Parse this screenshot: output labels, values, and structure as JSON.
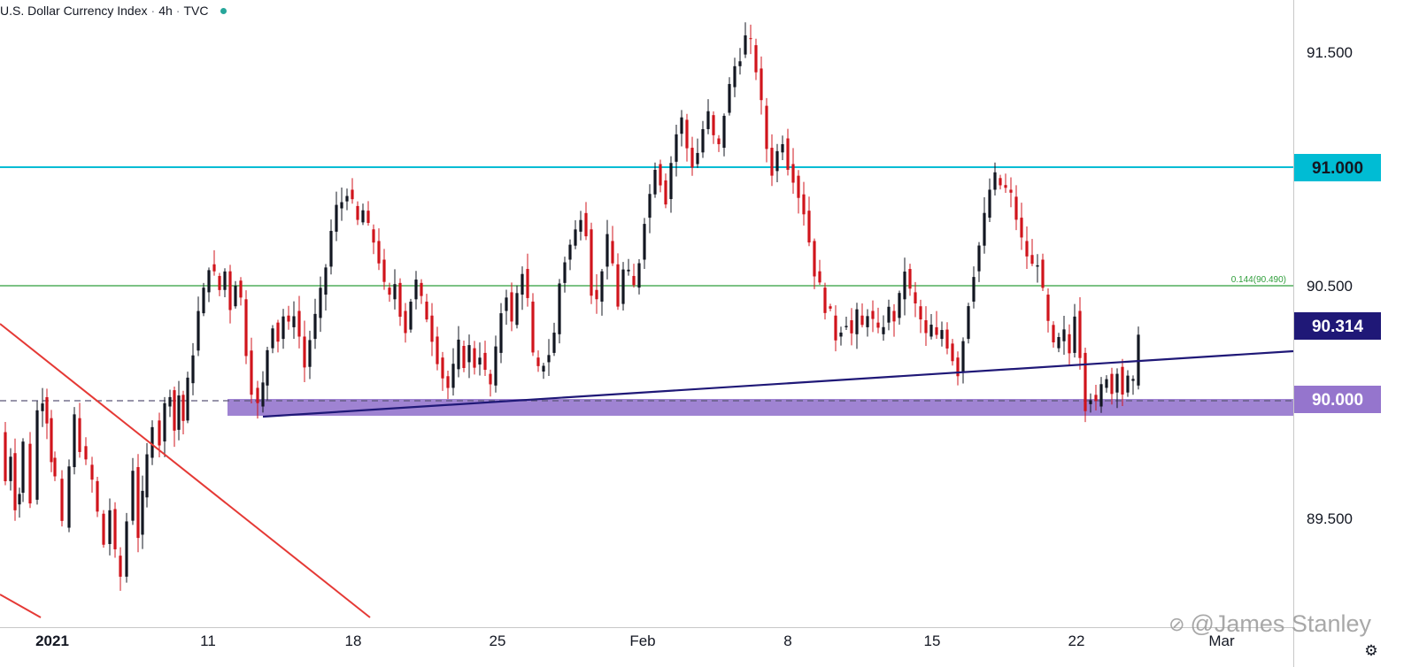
{
  "header": {
    "symbol": "U.S. Dollar Currency Index",
    "interval": "4h",
    "source": "TVC",
    "status_color": "#26a69a"
  },
  "watermark": "@James Stanley",
  "settings_icon": "gear-icon",
  "colors": {
    "up_candle": "#131722",
    "down_candle": "#d0141c",
    "resistance_line": "#00bcd4",
    "fib_line": "#2e9e3a",
    "trend_line": "#1f1877",
    "support_zone": "#9575cd",
    "down_trendline": "#e53935",
    "dashed_line": "#5b5677"
  },
  "chart_data": {
    "type": "candlestick",
    "title": "U.S. Dollar Currency Index",
    "timeframe": "4h",
    "ylim": [
      89.17,
      91.64
    ],
    "x_ticks": [
      "2021",
      "11",
      "18",
      "25",
      "Feb",
      "8",
      "15",
      "22",
      "Mar"
    ],
    "y_ticks": [
      "91.500",
      "91.000",
      "90.500",
      "89.500"
    ],
    "price_labels": [
      {
        "text": "91.000",
        "value": 91.0,
        "color": "#00bcd4"
      },
      {
        "text": "90.314",
        "value": 90.314,
        "color": "#1f1877"
      },
      {
        "text": "90.000",
        "value": 90.0,
        "color": "#9575cd"
      }
    ],
    "levels": [
      {
        "name": "resistance",
        "value": 91.0
      },
      {
        "name": "fib-level",
        "value": 90.49,
        "label": "0.144(90.490)"
      },
      {
        "name": "support-zone",
        "from": 89.935,
        "to": 90.005
      },
      {
        "name": "dashed-level",
        "value": 90.0
      }
    ],
    "trendlines": [
      {
        "name": "rising-support",
        "from": {
          "x": "Jan 13",
          "y": 89.92
        },
        "to": {
          "x": "Feb 26",
          "y": 90.22
        }
      },
      {
        "name": "falling-resistance",
        "from": {
          "x": "Jan 1",
          "y": 90.33
        },
        "to": {
          "x": "Jan 19",
          "y": 89.17
        }
      }
    ],
    "path": [
      [
        0,
        89.87
      ],
      [
        6,
        89.66
      ],
      [
        12,
        89.78
      ],
      [
        17,
        89.56
      ],
      [
        22,
        89.61
      ],
      [
        26,
        89.82
      ],
      [
        34,
        89.58
      ],
      [
        42,
        89.96
      ],
      [
        48,
        90.02
      ],
      [
        53,
        89.93
      ],
      [
        58,
        89.76
      ],
      [
        62,
        89.67
      ],
      [
        70,
        89.46
      ],
      [
        78,
        89.72
      ],
      [
        84,
        89.93
      ],
      [
        90,
        89.81
      ],
      [
        97,
        89.73
      ],
      [
        104,
        89.66
      ],
      [
        110,
        89.52
      ],
      [
        117,
        89.39
      ],
      [
        124,
        89.54
      ],
      [
        130,
        89.34
      ],
      [
        136,
        89.25
      ],
      [
        143,
        89.49
      ],
      [
        150,
        89.72
      ],
      [
        156,
        89.43
      ],
      [
        161,
        89.59
      ],
      [
        166,
        89.76
      ],
      [
        172,
        89.92
      ],
      [
        180,
        89.83
      ],
      [
        186,
        89.98
      ],
      [
        192,
        90.05
      ],
      [
        197,
        89.88
      ],
      [
        202,
        90.03
      ],
      [
        207,
        89.92
      ],
      [
        212,
        90.08
      ],
      [
        218,
        90.22
      ],
      [
        224,
        90.38
      ],
      [
        230,
        90.47
      ],
      [
        236,
        90.59
      ],
      [
        242,
        90.54
      ],
      [
        248,
        90.48
      ],
      [
        254,
        90.56
      ],
      [
        260,
        90.41
      ],
      [
        266,
        90.52
      ],
      [
        272,
        90.44
      ],
      [
        278,
        90.22
      ],
      [
        284,
        90.06
      ],
      [
        291,
        89.98
      ],
      [
        297,
        90.07
      ],
      [
        302,
        90.23
      ],
      [
        308,
        90.34
      ],
      [
        314,
        90.27
      ],
      [
        320,
        90.37
      ],
      [
        326,
        90.32
      ],
      [
        332,
        90.39
      ],
      [
        338,
        90.28
      ],
      [
        344,
        90.15
      ],
      [
        350,
        90.27
      ],
      [
        356,
        90.36
      ],
      [
        362,
        90.46
      ],
      [
        368,
        90.58
      ],
      [
        374,
        90.73
      ],
      [
        380,
        90.83
      ],
      [
        386,
        90.86
      ],
      [
        392,
        90.91
      ],
      [
        398,
        90.84
      ],
      [
        404,
        90.77
      ],
      [
        410,
        90.82
      ],
      [
        416,
        90.74
      ],
      [
        422,
        90.69
      ],
      [
        428,
        90.61
      ],
      [
        434,
        90.49
      ],
      [
        440,
        90.44
      ],
      [
        446,
        90.51
      ],
      [
        452,
        90.39
      ],
      [
        458,
        90.31
      ],
      [
        464,
        90.44
      ],
      [
        470,
        90.51
      ],
      [
        476,
        90.43
      ],
      [
        482,
        90.37
      ],
      [
        488,
        90.28
      ],
      [
        494,
        90.19
      ],
      [
        500,
        90.11
      ],
      [
        506,
        90.06
      ],
      [
        512,
        90.14
      ],
      [
        518,
        90.24
      ],
      [
        524,
        90.17
      ],
      [
        530,
        90.23
      ],
      [
        536,
        90.16
      ],
      [
        542,
        90.21
      ],
      [
        548,
        90.12
      ],
      [
        554,
        90.07
      ],
      [
        560,
        90.21
      ],
      [
        566,
        90.39
      ],
      [
        572,
        90.47
      ],
      [
        578,
        90.33
      ],
      [
        584,
        90.46
      ],
      [
        590,
        90.57
      ],
      [
        596,
        90.43
      ],
      [
        602,
        90.19
      ],
      [
        608,
        90.13
      ],
      [
        614,
        90.17
      ],
      [
        620,
        90.21
      ],
      [
        626,
        90.29
      ],
      [
        632,
        90.51
      ],
      [
        638,
        90.61
      ],
      [
        644,
        90.67
      ],
      [
        650,
        90.73
      ],
      [
        656,
        90.81
      ],
      [
        662,
        90.74
      ],
      [
        668,
        90.48
      ],
      [
        674,
        90.43
      ],
      [
        680,
        90.58
      ],
      [
        686,
        90.69
      ],
      [
        692,
        90.59
      ],
      [
        698,
        90.42
      ],
      [
        704,
        90.56
      ],
      [
        710,
        90.54
      ],
      [
        716,
        90.49
      ],
      [
        722,
        90.61
      ],
      [
        728,
        90.79
      ],
      [
        734,
        90.89
      ],
      [
        740,
        91.02
      ],
      [
        746,
        90.95
      ],
      [
        752,
        90.87
      ],
      [
        758,
        91.03
      ],
      [
        764,
        91.15
      ],
      [
        770,
        91.21
      ],
      [
        776,
        91.09
      ],
      [
        782,
        91.02
      ],
      [
        788,
        91.07
      ],
      [
        794,
        91.17
      ],
      [
        800,
        91.23
      ],
      [
        806,
        91.13
      ],
      [
        812,
        91.09
      ],
      [
        818,
        91.24
      ],
      [
        824,
        91.35
      ],
      [
        830,
        91.44
      ],
      [
        836,
        91.49
      ],
      [
        842,
        91.56
      ],
      [
        848,
        91.53
      ],
      [
        854,
        91.43
      ],
      [
        860,
        91.27
      ],
      [
        866,
        91.09
      ],
      [
        872,
        90.99
      ],
      [
        878,
        91.07
      ],
      [
        884,
        91.13
      ],
      [
        890,
        91.02
      ],
      [
        896,
        90.97
      ],
      [
        902,
        90.89
      ],
      [
        908,
        90.82
      ],
      [
        914,
        90.69
      ],
      [
        920,
        90.56
      ],
      [
        926,
        90.49
      ],
      [
        932,
        90.41
      ],
      [
        938,
        90.37
      ],
      [
        944,
        90.28
      ],
      [
        950,
        90.32
      ],
      [
        956,
        90.35
      ],
      [
        962,
        90.29
      ],
      [
        968,
        90.37
      ],
      [
        974,
        90.32
      ],
      [
        980,
        90.39
      ],
      [
        986,
        90.34
      ],
      [
        992,
        90.29
      ],
      [
        998,
        90.34
      ],
      [
        1004,
        90.39
      ],
      [
        1010,
        90.36
      ],
      [
        1016,
        90.44
      ],
      [
        1022,
        90.57
      ],
      [
        1028,
        90.47
      ],
      [
        1034,
        90.41
      ],
      [
        1040,
        90.35
      ],
      [
        1046,
        90.28
      ],
      [
        1052,
        90.32
      ],
      [
        1058,
        90.27
      ],
      [
        1064,
        90.31
      ],
      [
        1070,
        90.25
      ],
      [
        1076,
        90.19
      ],
      [
        1082,
        90.13
      ],
      [
        1088,
        90.27
      ],
      [
        1094,
        90.43
      ],
      [
        1100,
        90.56
      ],
      [
        1106,
        90.67
      ],
      [
        1112,
        90.79
      ],
      [
        1118,
        90.91
      ],
      [
        1124,
        90.96
      ],
      [
        1130,
        90.93
      ],
      [
        1136,
        90.91
      ],
      [
        1142,
        90.88
      ],
      [
        1148,
        90.79
      ],
      [
        1154,
        90.69
      ],
      [
        1160,
        90.63
      ],
      [
        1166,
        90.58
      ],
      [
        1172,
        90.61
      ],
      [
        1178,
        90.46
      ],
      [
        1184,
        90.33
      ],
      [
        1190,
        90.23
      ],
      [
        1196,
        90.26
      ],
      [
        1202,
        90.29
      ],
      [
        1208,
        90.21
      ],
      [
        1214,
        90.39
      ],
      [
        1220,
        90.21
      ],
      [
        1226,
        89.99
      ],
      [
        1232,
        90.03
      ],
      [
        1238,
        89.98
      ],
      [
        1244,
        90.06
      ],
      [
        1250,
        90.12
      ],
      [
        1256,
        90.04
      ],
      [
        1262,
        90.15
      ],
      [
        1268,
        90.04
      ],
      [
        1274,
        90.09
      ],
      [
        1280,
        90.07
      ],
      [
        1286,
        90.314
      ]
    ]
  }
}
